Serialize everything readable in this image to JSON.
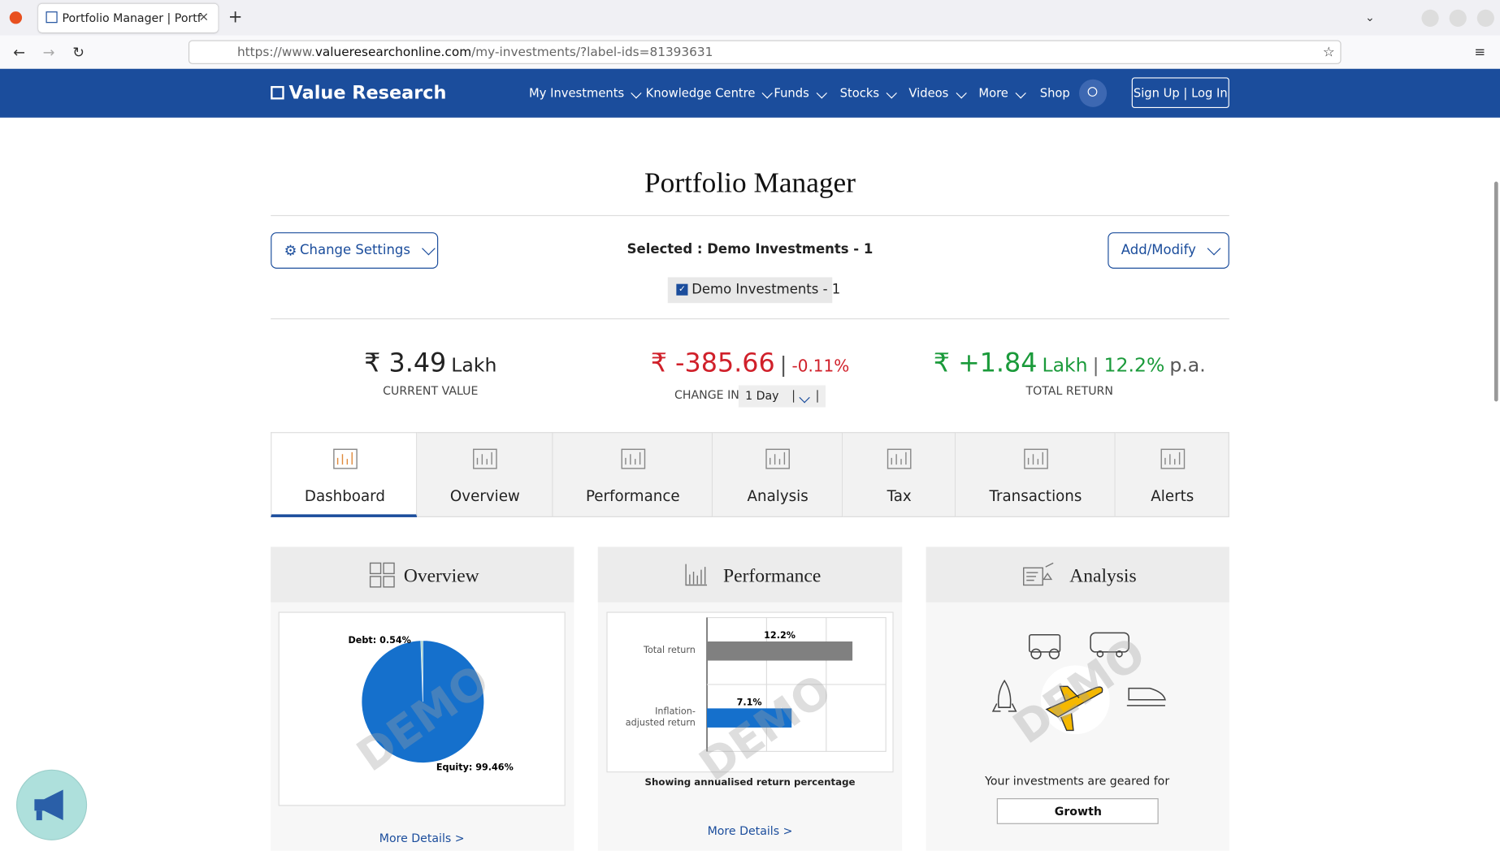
{
  "browser": {
    "tab_title": "Portfolio Manager | Portf",
    "url_prefix": "https://www.",
    "url_domain": "valueresearchonline.com",
    "url_path": "/my-investments/?label-ids=81393631"
  },
  "nav": {
    "logo": "Value Research",
    "items": [
      "My Investments",
      "Knowledge Centre",
      "Funds",
      "Stocks",
      "Videos",
      "More",
      "Shop"
    ],
    "auth": "Sign Up | Log In"
  },
  "page": {
    "title": "Portfolio Manager",
    "settings_button": "Change Settings",
    "selected": "Selected : Demo Investments - 1",
    "chip": "Demo Investments - 1",
    "add_button": "Add/Modify"
  },
  "summary": {
    "current_value": {
      "amount": "₹ 3.49",
      "unit": "Lakh",
      "label": "CURRENT VALUE"
    },
    "change": {
      "amount": "₹ -385.66",
      "separator": "|",
      "percent": "-0.11%",
      "label": "CHANGE IN",
      "period": "1 Day"
    },
    "total_return": {
      "amount": "₹ +1.84",
      "unit": "Lakh",
      "separator": "|",
      "rate": "12.2%",
      "rate_unit": "p.a.",
      "label": "TOTAL RETURN"
    }
  },
  "tabs": [
    "Dashboard",
    "Overview",
    "Performance",
    "Analysis",
    "Tax",
    "Transactions",
    "Alerts"
  ],
  "cards": {
    "overview": {
      "title": "Overview",
      "watermark": "DEMO",
      "link": "More Details >",
      "pie": {
        "slices": [
          {
            "label": "Debt: 0.54%",
            "value": 0.54,
            "color": "#9fd3c4"
          },
          {
            "label": "Equity: 99.46%",
            "value": 99.46,
            "color": "#1570cc"
          }
        ]
      }
    },
    "performance": {
      "title": "Performance",
      "watermark": "DEMO",
      "caption": "Showing annualised return percentage",
      "link": "More Details >",
      "xlim": [
        0,
        15
      ],
      "gridlines": [
        5,
        10
      ],
      "bars": [
        {
          "category": "Total return",
          "value": 12.2,
          "value_label": "12.2%",
          "color": "#808080"
        },
        {
          "category": "Inflation-adjusted return",
          "value": 7.1,
          "value_label": "7.1%",
          "color": "#1570cc"
        }
      ]
    },
    "analysis": {
      "title": "Analysis",
      "watermark": "DEMO",
      "text": "Your investments are geared for",
      "result": "Growth"
    }
  }
}
